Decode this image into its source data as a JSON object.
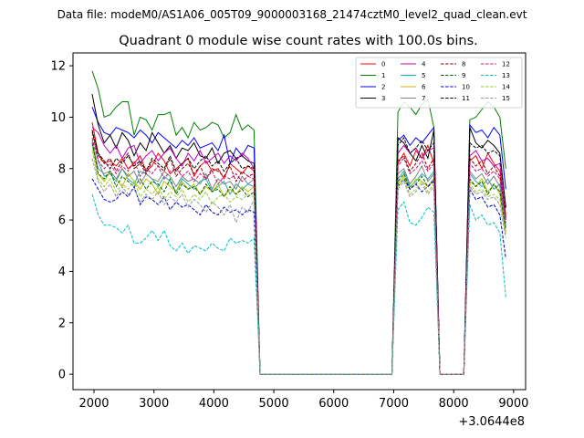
{
  "chart_data": {
    "type": "line",
    "suptitle": "Data file: modeM0/AS1A06_005T09_9000003168_21474cztM0_level2_quad_clean.evt",
    "title": "Quadrant 0 module wise count rates with 100.0s bins.",
    "xlabel": "",
    "ylabel": "",
    "x_offset_label": "+3.0644e8",
    "xlim": [
      1650,
      9200
    ],
    "ylim": [
      -0.6,
      12.5
    ],
    "xticks": [
      2000,
      3000,
      4000,
      5000,
      6000,
      7000,
      8000,
      9000
    ],
    "xtick_labels": [
      "2000",
      "3000",
      "4000",
      "5000",
      "6000",
      "7000",
      "8000",
      "9000"
    ],
    "yticks": [
      0,
      2,
      4,
      6,
      8,
      10,
      12
    ],
    "ytick_labels": [
      "0",
      "2",
      "4",
      "6",
      "8",
      "10",
      "12"
    ],
    "legend": {
      "location": "upper right",
      "ncol": 4
    },
    "x": [
      1970,
      2070,
      2170,
      2270,
      2370,
      2470,
      2570,
      2670,
      2770,
      2870,
      2970,
      3070,
      3170,
      3270,
      3370,
      3470,
      3570,
      3670,
      3770,
      3870,
      3970,
      4070,
      4170,
      4270,
      4370,
      4470,
      4570,
      4670,
      4770,
      4870,
      4970,
      5070,
      5170,
      5270,
      5370,
      5470,
      5570,
      5670,
      5770,
      5870,
      5970,
      6070,
      6170,
      6270,
      6370,
      6470,
      6570,
      6670,
      6770,
      6870,
      6970,
      7070,
      7170,
      7270,
      7370,
      7470,
      7570,
      7670,
      7770,
      7870,
      7970,
      8070,
      8170,
      8270,
      8370,
      8470,
      8570,
      8670,
      8770,
      8870
    ],
    "series": [
      {
        "name": "0",
        "color": "#ff0000",
        "dash": false,
        "active": [
          9.8,
          8.6,
          8.2,
          8.3,
          8.1,
          8.4,
          8.0,
          8.2,
          8.5,
          7.9,
          8.1,
          8.6,
          8.3,
          7.8,
          8.0,
          8.2,
          8.4,
          7.7,
          8.1,
          8.3,
          7.9,
          8.0,
          7.6,
          8.2,
          8.0,
          7.8,
          8.1,
          7.9
        ],
        "seg2": [
          8.2,
          8.6,
          8.1,
          8.7,
          8.4,
          8.9,
          8.2
        ],
        "seg3": [
          8.3,
          8.5,
          8.0,
          8.6,
          8.2,
          7.9,
          6.2
        ]
      },
      {
        "name": "1",
        "color": "#008000",
        "dash": false,
        "active": [
          11.8,
          11.1,
          10.0,
          10.1,
          10.4,
          10.6,
          10.6,
          9.3,
          10.0,
          9.9,
          9.5,
          10.1,
          10.1,
          10.2,
          9.3,
          9.6,
          9.2,
          9.8,
          9.5,
          9.6,
          9.8,
          9.7,
          9.2,
          9.4,
          10.1,
          9.5,
          9.7,
          9.5
        ],
        "seg2": [
          10.2,
          10.6,
          10.4,
          10.1,
          10.5,
          10.7,
          9.6
        ],
        "seg3": [
          9.9,
          10.0,
          10.3,
          10.6,
          10.4,
          10.0,
          8.0
        ]
      },
      {
        "name": "2",
        "color": "#0000ff",
        "dash": false,
        "active": [
          10.4,
          9.8,
          9.4,
          9.3,
          9.6,
          9.5,
          9.4,
          9.2,
          9.5,
          9.3,
          9.0,
          9.4,
          9.2,
          9.0,
          8.8,
          9.1,
          8.9,
          9.2,
          8.8,
          8.9,
          9.0,
          8.7,
          9.3,
          8.2,
          8.8,
          8.5,
          8.9,
          8.8
        ],
        "seg2": [
          9.1,
          9.3,
          8.9,
          9.2,
          9.0,
          9.3,
          9.6
        ],
        "seg3": [
          9.7,
          9.4,
          9.5,
          9.2,
          9.6,
          9.3,
          7.2
        ]
      },
      {
        "name": "3",
        "color": "#000000",
        "dash": false,
        "active": [
          10.9,
          9.7,
          9.0,
          9.3,
          8.8,
          9.4,
          9.1,
          8.5,
          9.0,
          8.7,
          9.4,
          9.0,
          8.6,
          8.9,
          8.4,
          8.8,
          8.7,
          9.0,
          8.5,
          8.4,
          8.8,
          8.2,
          8.6,
          8.7,
          8.4,
          8.5,
          8.3,
          8.2
        ],
        "seg2": [
          9.2,
          9.0,
          8.6,
          8.3,
          8.9,
          8.4,
          9.5
        ],
        "seg3": [
          9.6,
          9.0,
          8.8,
          9.1,
          8.9,
          8.6,
          6.5
        ]
      },
      {
        "name": "4",
        "color": "#bf00bf",
        "dash": false,
        "active": [
          9.6,
          9.4,
          8.9,
          8.6,
          8.9,
          8.4,
          8.8,
          8.9,
          8.2,
          8.5,
          8.7,
          8.3,
          8.6,
          8.8,
          8.4,
          8.1,
          8.6,
          8.3,
          8.7,
          8.2,
          8.4,
          8.6,
          8.2,
          8.5,
          8.3,
          8.6,
          8.4,
          8.0
        ],
        "seg2": [
          8.6,
          8.9,
          8.6,
          8.8,
          8.4,
          8.7,
          8.8
        ],
        "seg3": [
          8.5,
          8.7,
          8.3,
          8.4,
          8.1,
          8.2,
          6.0
        ]
      },
      {
        "name": "5",
        "color": "#20b2aa",
        "dash": false,
        "active": [
          9.5,
          8.3,
          7.7,
          7.8,
          7.5,
          8.0,
          7.6,
          7.4,
          7.9,
          7.8,
          7.6,
          7.3,
          7.7,
          7.5,
          7.1,
          7.6,
          7.4,
          7.2,
          7.5,
          7.6,
          7.1,
          7.3,
          7.5,
          7.0,
          7.4,
          7.2,
          7.4,
          7.3
        ],
        "seg2": [
          7.6,
          7.9,
          7.3,
          7.5,
          7.8,
          7.6,
          7.9
        ],
        "seg3": [
          7.8,
          7.5,
          7.3,
          7.6,
          7.2,
          7.4,
          5.8
        ]
      },
      {
        "name": "6",
        "color": "#bfbf00",
        "dash": false,
        "active": [
          8.9,
          7.8,
          7.5,
          7.9,
          7.6,
          7.3,
          7.8,
          7.5,
          7.2,
          7.6,
          7.4,
          7.0,
          7.5,
          7.3,
          7.1,
          7.5,
          7.2,
          7.4,
          7.0,
          7.3,
          7.1,
          7.4,
          6.9,
          7.2,
          7.0,
          7.3,
          7.1,
          7.3
        ],
        "seg2": [
          7.4,
          7.7,
          7.2,
          7.6,
          7.5,
          7.3,
          7.6
        ],
        "seg3": [
          7.5,
          7.3,
          7.6,
          7.1,
          7.4,
          7.0,
          5.5
        ]
      },
      {
        "name": "7",
        "color": "#808080",
        "dash": false,
        "active": [
          9.1,
          8.0,
          7.8,
          7.9,
          7.6,
          8.0,
          7.7,
          7.9,
          7.4,
          7.8,
          7.6,
          7.5,
          7.9,
          7.7,
          7.3,
          7.7,
          7.5,
          7.6,
          7.4,
          7.8,
          7.2,
          7.6,
          7.4,
          7.5,
          7.2,
          7.7,
          7.4,
          7.6
        ],
        "seg2": [
          7.8,
          8.0,
          7.4,
          7.7,
          8.1,
          7.5,
          7.8
        ],
        "seg3": [
          7.9,
          7.6,
          7.8,
          7.4,
          7.7,
          7.3,
          5.7
        ]
      },
      {
        "name": "8",
        "color": "#8b0000",
        "dash": true,
        "active": [
          9.4,
          8.5,
          8.2,
          8.4,
          7.9,
          8.3,
          8.6,
          8.0,
          8.2,
          7.8,
          8.3,
          8.1,
          7.9,
          8.4,
          7.7,
          8.0,
          8.2,
          7.8,
          8.1,
          7.6,
          8.0,
          7.9,
          7.7,
          8.1,
          7.5,
          7.9,
          7.7,
          7.8
        ],
        "seg2": [
          8.3,
          8.5,
          7.9,
          8.2,
          8.6,
          8.0,
          8.4
        ],
        "seg3": [
          8.4,
          8.1,
          8.3,
          7.8,
          8.1,
          7.7,
          6.1
        ]
      },
      {
        "name": "9",
        "color": "#006400",
        "dash": true,
        "active": [
          9.0,
          7.8,
          7.6,
          7.9,
          7.3,
          7.7,
          7.5,
          7.3,
          7.6,
          7.2,
          7.5,
          7.4,
          7.1,
          7.6,
          7.0,
          7.4,
          7.2,
          7.3,
          7.0,
          7.4,
          7.1,
          7.2,
          6.9,
          7.3,
          7.0,
          7.2,
          6.9,
          7.1
        ],
        "seg2": [
          7.5,
          7.8,
          7.2,
          7.4,
          7.7,
          7.3,
          7.6
        ],
        "seg3": [
          7.6,
          7.3,
          7.5,
          7.0,
          7.4,
          7.1,
          5.6
        ]
      },
      {
        "name": "10",
        "color": "#0000cd",
        "dash": true,
        "active": [
          7.6,
          7.2,
          6.8,
          6.7,
          6.8,
          7.1,
          6.9,
          7.3,
          6.6,
          6.9,
          6.8,
          6.6,
          6.9,
          6.4,
          6.7,
          6.5,
          6.6,
          6.4,
          6.2,
          6.6,
          6.3,
          6.2,
          6.5,
          6.3,
          6.4,
          6.2,
          6.4,
          6.3
        ],
        "seg2": [
          7.3,
          7.6,
          7.2,
          7.4,
          7.1,
          7.3,
          7.5
        ],
        "seg3": [
          7.2,
          6.8,
          6.9,
          6.5,
          6.6,
          6.2,
          4.5
        ]
      },
      {
        "name": "11",
        "color": "#000000",
        "dash": true,
        "active": [
          9.5,
          8.6,
          8.3,
          8.0,
          8.4,
          8.2,
          8.5,
          8.1,
          8.3,
          7.9,
          8.4,
          8.2,
          8.0,
          8.5,
          7.9,
          8.2,
          8.4,
          8.0,
          8.3,
          8.5,
          8.1,
          8.3,
          7.9,
          8.2,
          8.4,
          8.0,
          8.1,
          8.0
        ],
        "seg2": [
          8.9,
          9.2,
          8.6,
          8.8,
          9.1,
          8.7,
          9.0
        ],
        "seg3": [
          9.0,
          8.8,
          8.9,
          8.6,
          8.7,
          8.5,
          6.4
        ]
      },
      {
        "name": "12",
        "color": "#c71585",
        "dash": true,
        "active": [
          9.2,
          8.3,
          8.0,
          8.2,
          7.8,
          8.1,
          7.9,
          8.3,
          7.7,
          8.0,
          7.8,
          8.1,
          7.6,
          7.9,
          8.0,
          7.7,
          7.9,
          7.5,
          7.8,
          7.6,
          7.9,
          7.4,
          7.7,
          7.6,
          7.8,
          7.5,
          7.7,
          7.6
        ],
        "seg2": [
          8.1,
          8.4,
          7.8,
          8.0,
          8.3,
          7.9,
          8.2
        ],
        "seg3": [
          8.2,
          7.9,
          8.0,
          7.7,
          7.9,
          7.6,
          5.9
        ]
      },
      {
        "name": "13",
        "color": "#00bfbf",
        "dash": true,
        "active": [
          7.0,
          6.2,
          5.8,
          5.8,
          5.7,
          5.5,
          5.8,
          5.1,
          5.1,
          5.3,
          5.6,
          5.2,
          5.6,
          5.0,
          4.8,
          5.1,
          4.7,
          5.0,
          4.9,
          4.8,
          5.1,
          4.9,
          4.8,
          5.3,
          5.1,
          5.2,
          5.1,
          5.3
        ],
        "seg2": [
          6.4,
          6.7,
          5.9,
          5.8,
          6.1,
          6.5,
          6.3
        ],
        "seg3": [
          6.6,
          6.0,
          6.2,
          5.8,
          5.9,
          5.5,
          3.0
        ]
      },
      {
        "name": "14",
        "color": "#9acd32",
        "dash": true,
        "active": [
          8.7,
          7.6,
          7.3,
          7.6,
          7.1,
          7.4,
          7.2,
          7.5,
          6.9,
          7.2,
          7.0,
          7.3,
          6.8,
          7.1,
          6.9,
          7.2,
          6.7,
          7.0,
          6.8,
          7.1,
          6.6,
          6.9,
          7.0,
          6.7,
          6.9,
          6.8,
          7.0,
          6.9
        ],
        "seg2": [
          7.3,
          7.6,
          7.0,
          7.2,
          7.5,
          7.1,
          7.4
        ],
        "seg3": [
          7.4,
          7.1,
          7.2,
          6.9,
          7.0,
          6.8,
          5.4
        ]
      },
      {
        "name": "15",
        "color": "#999999",
        "dash": true,
        "active": [
          8.4,
          7.5,
          7.1,
          7.4,
          6.9,
          7.3,
          7.0,
          7.2,
          6.7,
          7.0,
          6.8,
          7.1,
          6.6,
          6.9,
          6.7,
          7.0,
          6.5,
          6.8,
          6.6,
          6.3,
          6.7,
          6.5,
          6.2,
          6.6,
          5.9,
          6.5,
          6.3,
          6.8
        ],
        "seg2": [
          7.2,
          7.5,
          6.9,
          7.1,
          7.4,
          7.0,
          7.3
        ],
        "seg3": [
          7.3,
          7.0,
          7.1,
          6.8,
          6.9,
          6.6,
          5.3
        ]
      }
    ]
  }
}
